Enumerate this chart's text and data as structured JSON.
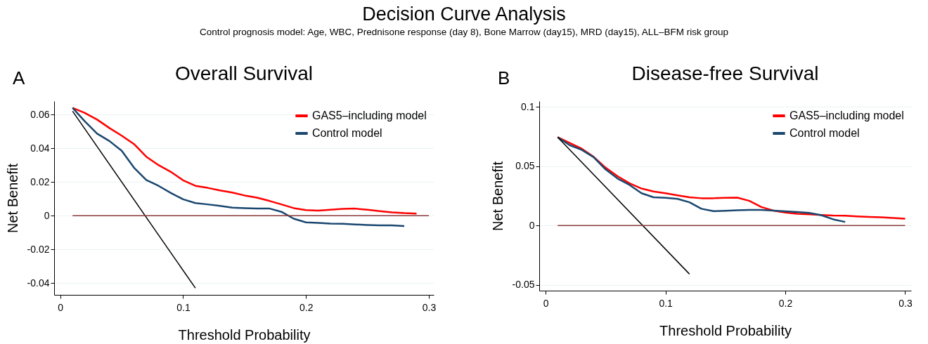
{
  "chart_data": [
    {
      "type": "line",
      "title": "Overall Survival",
      "xlabel": "Threshold Probability",
      "ylabel": "Net Benefit",
      "annotations": [
        "Decision Curve Analysis",
        "Control prognosis model: Age, WBC, Prednisone response (day 8), Bone Marrow (day15), MRD (day15), ALL–BFM risk group",
        "A"
      ],
      "xlim": [
        -0.005,
        0.304
      ],
      "xticks": [
        0,
        0.1,
        0.2,
        0.3
      ],
      "ylim": [
        -0.047,
        0.068
      ],
      "yticks": [
        -0.04,
        -0.02,
        0,
        0.02,
        0.04,
        0.06
      ],
      "grid": "y",
      "legend": "top right",
      "series": [
        {
          "name": "GAS5–including model",
          "color": "#ff0000",
          "x": [
            0.01,
            0.02,
            0.03,
            0.04,
            0.05,
            0.06,
            0.07,
            0.08,
            0.09,
            0.1,
            0.11,
            0.12,
            0.13,
            0.14,
            0.15,
            0.16,
            0.17,
            0.18,
            0.19,
            0.2,
            0.21,
            0.22,
            0.23,
            0.24,
            0.25,
            0.26,
            0.27,
            0.28,
            0.29
          ],
          "values": [
            0.064,
            0.061,
            0.057,
            0.052,
            0.0475,
            0.0425,
            0.035,
            0.03,
            0.026,
            0.021,
            0.0177,
            0.0165,
            0.015,
            0.0137,
            0.012,
            0.0107,
            0.0088,
            0.0067,
            0.0045,
            0.0033,
            0.003,
            0.0035,
            0.004,
            0.0042,
            0.0035,
            0.0027,
            0.002,
            0.0015,
            0.0012
          ]
        },
        {
          "name": "Control model",
          "color": "#1a476f",
          "x": [
            0.01,
            0.02,
            0.03,
            0.04,
            0.05,
            0.06,
            0.07,
            0.08,
            0.09,
            0.1,
            0.11,
            0.12,
            0.13,
            0.14,
            0.15,
            0.16,
            0.17,
            0.18,
            0.19,
            0.2,
            0.21,
            0.22,
            0.23,
            0.24,
            0.25,
            0.26,
            0.27,
            0.28
          ],
          "values": [
            0.064,
            0.056,
            0.0487,
            0.0443,
            0.0385,
            0.0285,
            0.0212,
            0.0177,
            0.0135,
            0.0097,
            0.0075,
            0.0067,
            0.0058,
            0.0048,
            0.0045,
            0.0043,
            0.0043,
            0.0023,
            -0.0018,
            -0.004,
            -0.0043,
            -0.0047,
            -0.0048,
            -0.0052,
            -0.0055,
            -0.0057,
            -0.0058,
            -0.0062
          ]
        },
        {
          "color": "#000000",
          "x": [
            0.01,
            0.11
          ],
          "values": [
            0.062,
            -0.043
          ]
        },
        {
          "color": "#8b3a3a",
          "x": [
            0.01,
            0.3
          ],
          "values": [
            0,
            0
          ]
        }
      ]
    },
    {
      "type": "line",
      "title": "Disease-free Survival",
      "xlabel": "Threshold Probability",
      "ylabel": "Net Benefit",
      "annotations": [
        "B"
      ],
      "xlim": [
        -0.0054,
        0.305
      ],
      "xticks": [
        0,
        0.1,
        0.2,
        0.3
      ],
      "ylim": [
        -0.055,
        0.105
      ],
      "yticks": [
        -0.05,
        0,
        0.05,
        0.1
      ],
      "grid": "y",
      "legend": "top right",
      "series": [
        {
          "name": "GAS5–including model",
          "color": "#ff0000",
          "x": [
            0.01,
            0.02,
            0.03,
            0.04,
            0.05,
            0.06,
            0.07,
            0.08,
            0.09,
            0.1,
            0.11,
            0.12,
            0.13,
            0.14,
            0.15,
            0.16,
            0.17,
            0.18,
            0.19,
            0.2,
            0.21,
            0.22,
            0.23,
            0.24,
            0.25,
            0.26,
            0.27,
            0.28,
            0.29,
            0.3
          ],
          "values": [
            0.0745,
            0.0696,
            0.0649,
            0.058,
            0.0488,
            0.0416,
            0.0356,
            0.0312,
            0.0287,
            0.0272,
            0.0255,
            0.0238,
            0.023,
            0.023,
            0.0233,
            0.0235,
            0.0208,
            0.0156,
            0.0126,
            0.0109,
            0.0099,
            0.0094,
            0.0089,
            0.0084,
            0.0082,
            0.0077,
            0.0072,
            0.0069,
            0.0064,
            0.0057
          ]
        },
        {
          "name": "Control model",
          "color": "#1a476f",
          "x": [
            0.01,
            0.02,
            0.03,
            0.04,
            0.05,
            0.06,
            0.07,
            0.08,
            0.09,
            0.1,
            0.11,
            0.12,
            0.13,
            0.14,
            0.15,
            0.16,
            0.17,
            0.18,
            0.19,
            0.2,
            0.21,
            0.22,
            0.23,
            0.24,
            0.25
          ],
          "values": [
            0.0745,
            0.0678,
            0.0639,
            0.0577,
            0.0473,
            0.0396,
            0.0342,
            0.0272,
            0.0238,
            0.0233,
            0.0225,
            0.0196,
            0.0141,
            0.0121,
            0.0124,
            0.0129,
            0.0131,
            0.0131,
            0.0126,
            0.0119,
            0.0114,
            0.0106,
            0.0087,
            0.0052,
            0.003
          ]
        },
        {
          "color": "#000000",
          "x": [
            0.01,
            0.12
          ],
          "values": [
            0.0745,
            -0.041
          ]
        },
        {
          "color": "#8b3a3a",
          "x": [
            0.01,
            0.3
          ],
          "values": [
            0,
            0
          ]
        }
      ]
    }
  ]
}
